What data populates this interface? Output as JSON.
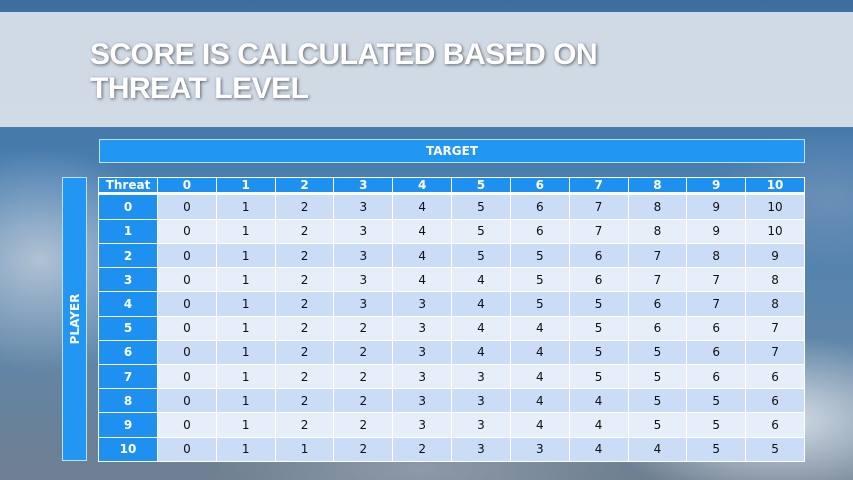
{
  "title": "Score is calculated based on threat level",
  "title_lines": [
    "SCORE IS CALCULATED BASED ON",
    "THREAT LEVEL"
  ],
  "target_label": "TARGET",
  "player_label": "PLAYER",
  "table": {
    "corner_label": "Threat",
    "columns": [
      "0",
      "1",
      "2",
      "3",
      "4",
      "5",
      "6",
      "7",
      "8",
      "9",
      "10"
    ],
    "rows": [
      {
        "label": "0",
        "values": [
          0,
          1,
          2,
          3,
          4,
          5,
          6,
          7,
          8,
          9,
          10
        ]
      },
      {
        "label": "1",
        "values": [
          0,
          1,
          2,
          3,
          4,
          5,
          6,
          7,
          8,
          9,
          10
        ]
      },
      {
        "label": "2",
        "values": [
          0,
          1,
          2,
          3,
          4,
          5,
          5,
          6,
          7,
          8,
          9
        ]
      },
      {
        "label": "3",
        "values": [
          0,
          1,
          2,
          3,
          4,
          4,
          5,
          6,
          7,
          7,
          8
        ]
      },
      {
        "label": "4",
        "values": [
          0,
          1,
          2,
          3,
          3,
          4,
          5,
          5,
          6,
          7,
          8
        ]
      },
      {
        "label": "5",
        "values": [
          0,
          1,
          2,
          2,
          3,
          4,
          4,
          5,
          6,
          6,
          7
        ]
      },
      {
        "label": "6",
        "values": [
          0,
          1,
          2,
          2,
          3,
          4,
          4,
          5,
          5,
          6,
          7
        ]
      },
      {
        "label": "7",
        "values": [
          0,
          1,
          2,
          2,
          3,
          3,
          4,
          5,
          5,
          6,
          6
        ]
      },
      {
        "label": "8",
        "values": [
          0,
          1,
          2,
          2,
          3,
          3,
          4,
          4,
          5,
          5,
          6
        ]
      },
      {
        "label": "9",
        "values": [
          0,
          1,
          2,
          2,
          3,
          3,
          4,
          4,
          5,
          5,
          6
        ]
      },
      {
        "label": "10",
        "values": [
          0,
          1,
          1,
          2,
          2,
          3,
          3,
          4,
          4,
          5,
          5
        ]
      }
    ]
  },
  "colors": {
    "header_blue": "#1e90f0",
    "row_dark": "#cbdcf6",
    "row_light": "#e6eefa"
  }
}
